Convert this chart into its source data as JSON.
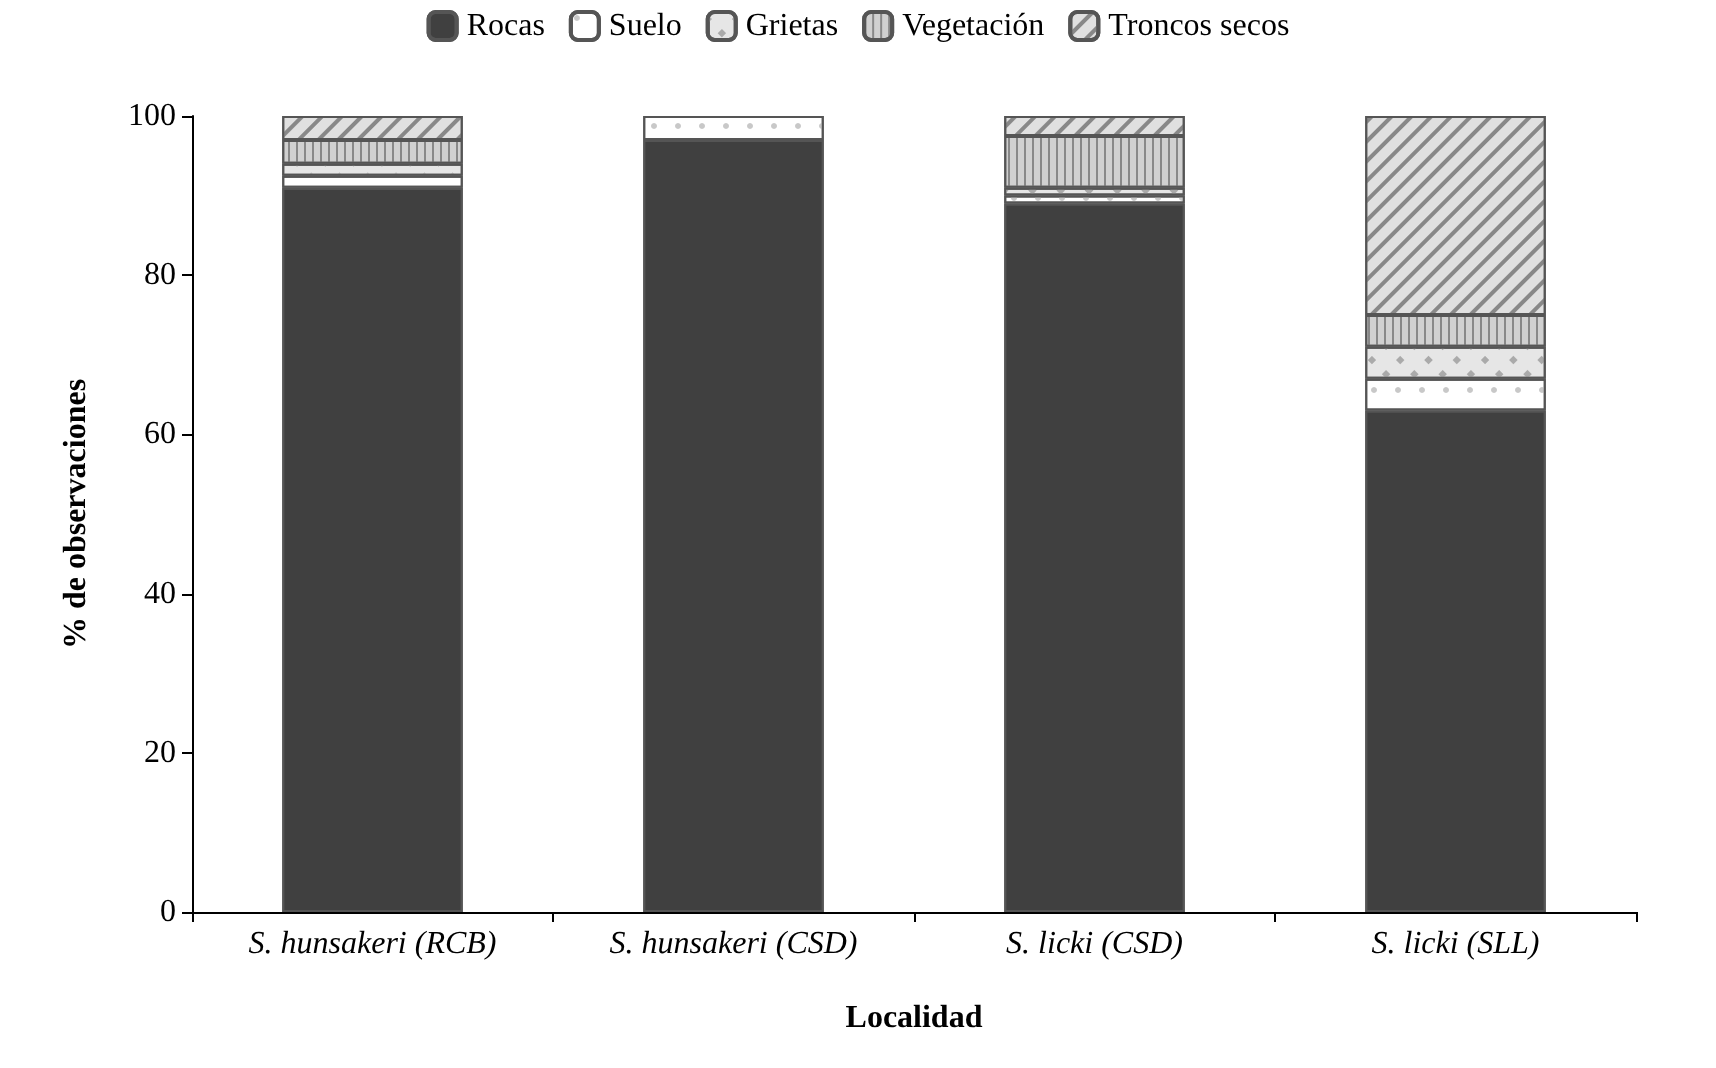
{
  "chart_data": {
    "type": "bar",
    "stacked": true,
    "xlabel": "Localidad",
    "ylabel": "% de observaciones",
    "categories": [
      "S. hunsakeri (RCB)",
      "S. hunsakeri (CSD)",
      "S. licki (CSD)",
      "S. licki (SLL)"
    ],
    "series": [
      {
        "name": "Rocas",
        "color": "#404040",
        "values": [
          91,
          97,
          89,
          63
        ]
      },
      {
        "name": "Suelo",
        "color": "#ffffff",
        "values": [
          1.5,
          3,
          1,
          4
        ]
      },
      {
        "name": "Grietas",
        "color": "#e6e6e6",
        "values": [
          1.5,
          0,
          1,
          4
        ]
      },
      {
        "name": "Vegetación",
        "color": "#d0d0d0",
        "values": [
          3,
          0,
          6.5,
          4
        ]
      },
      {
        "name": "Troncos secos",
        "color": "#e0e0e0",
        "values": [
          3,
          0,
          2.5,
          25
        ]
      }
    ],
    "ylim": [
      0,
      100
    ],
    "yticks": [
      0,
      20,
      40,
      60,
      80,
      100
    ],
    "grid": false,
    "legend": "top"
  }
}
